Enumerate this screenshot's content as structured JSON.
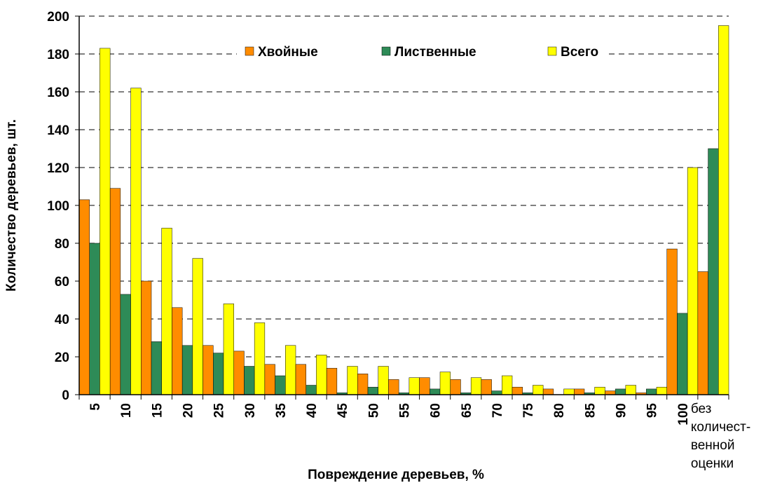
{
  "chart_data": {
    "type": "bar",
    "x_label": "Повреждение деревьев, %",
    "y_label": "Количество деревьев, шт.",
    "categories": [
      "5",
      "10",
      "15",
      "20",
      "25",
      "30",
      "35",
      "40",
      "45",
      "50",
      "55",
      "60",
      "65",
      "70",
      "75",
      "80",
      "85",
      "90",
      "95",
      "100",
      "без\nколичест-\nвенной\nоценки"
    ],
    "series": [
      {
        "name": "Хвойные",
        "color": "#ff8c00",
        "values": [
          103,
          109,
          60,
          46,
          26,
          23,
          16,
          16,
          14,
          11,
          8,
          9,
          8,
          8,
          4,
          3,
          3,
          2,
          1,
          77,
          65
        ]
      },
      {
        "name": "Лиственные",
        "color": "#2e8b57",
        "values": [
          80,
          53,
          28,
          26,
          22,
          15,
          10,
          5,
          1,
          4,
          1,
          3,
          1,
          2,
          1,
          0,
          1,
          3,
          3,
          43,
          130
        ]
      },
      {
        "name": "Всего",
        "color": "#ffff00",
        "values": [
          183,
          162,
          88,
          72,
          48,
          38,
          26,
          21,
          15,
          15,
          9,
          12,
          9,
          10,
          5,
          3,
          4,
          5,
          4,
          120,
          195
        ]
      }
    ],
    "ylim": [
      0,
      200
    ],
    "yticks": [
      0,
      20,
      40,
      60,
      80,
      100,
      120,
      140,
      160,
      180,
      200
    ],
    "grid": true
  }
}
